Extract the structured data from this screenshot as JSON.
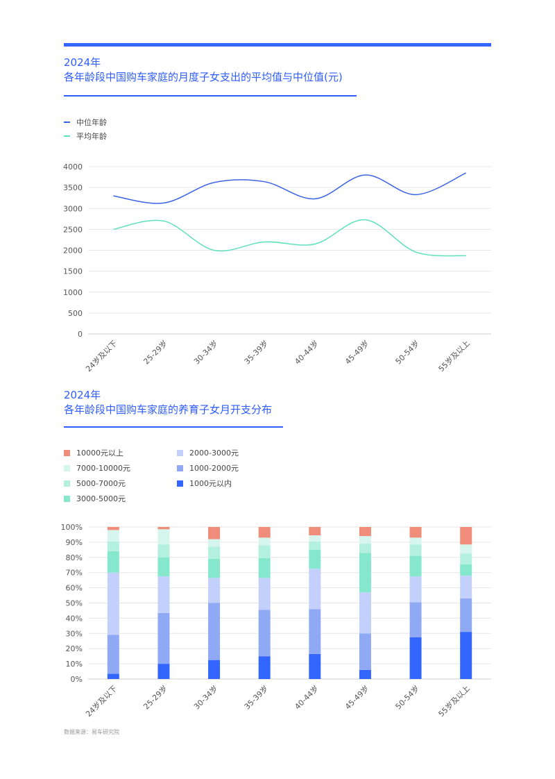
{
  "chart1": {
    "year": "2024年",
    "subtitle": "各年龄段中国购车家庭的月度子女支出的平均值与中位值(元)",
    "legend": [
      {
        "label": "中位年龄",
        "color": "#3b63e6"
      },
      {
        "label": "平均年龄",
        "color": "#5ee0bd"
      }
    ]
  },
  "chart2": {
    "year": "2024年",
    "subtitle": "各年龄段中国购车家庭的养育子女月开支分布",
    "legend": [
      {
        "label": "10000元以上",
        "color": "#f08c7a"
      },
      {
        "label": "7000-10000元",
        "color": "#d6f5ec"
      },
      {
        "label": "5000-7000元",
        "color": "#b3f0de"
      },
      {
        "label": "3000-5000元",
        "color": "#85e8cc"
      },
      {
        "label": "2000-3000元",
        "color": "#c2d0fb"
      },
      {
        "label": "1000-2000元",
        "color": "#8fa9f5"
      },
      {
        "label": "1000元以内",
        "color": "#3366ff"
      }
    ]
  },
  "source": "数据来源：易车研究院",
  "chart_data": [
    {
      "type": "line",
      "categories": [
        "24岁及以下",
        "25-29岁",
        "30-34岁",
        "35-39岁",
        "40-44岁",
        "45-49岁",
        "50-54岁",
        "55岁及以上"
      ],
      "yticks": [
        "0",
        "500",
        "1000",
        "1500",
        "2000",
        "2500",
        "3000",
        "3500",
        "4000"
      ],
      "ylim": [
        0,
        4000
      ],
      "grid": true,
      "legend_position": "top-left",
      "series": [
        {
          "name": "中位年龄",
          "color": "#3b63e6",
          "values": [
            3300,
            3130,
            3620,
            3640,
            3230,
            3800,
            3330,
            3850
          ]
        },
        {
          "name": "平均年龄",
          "color": "#5ee0bd",
          "values": [
            2500,
            2700,
            2000,
            2200,
            2150,
            2730,
            1960,
            1870
          ]
        }
      ]
    },
    {
      "type": "bar",
      "stacked": true,
      "categories": [
        "24岁及以下",
        "25-29岁",
        "30-34岁",
        "35-39岁",
        "40-44岁",
        "45-49岁",
        "50-54岁",
        "55岁及以上"
      ],
      "yticks": [
        "0%",
        "10%",
        "20%",
        "30%",
        "40%",
        "50%",
        "60%",
        "70%",
        "80%",
        "90%",
        "100%"
      ],
      "ylim": [
        0,
        100
      ],
      "grid": true,
      "legend_position": "top-left",
      "series": [
        {
          "name": "1000元以内",
          "color": "#3366ff",
          "values": [
            3.5,
            10,
            12.5,
            15,
            16.5,
            6,
            27.5,
            31
          ]
        },
        {
          "name": "1000-2000元",
          "color": "#8fa9f5",
          "values": [
            25.5,
            33.5,
            37.5,
            30.5,
            29.5,
            24,
            23,
            22
          ]
        },
        {
          "name": "2000-3000元",
          "color": "#c2d0fb",
          "values": [
            41,
            24,
            16.5,
            21,
            26.5,
            27,
            17,
            15
          ]
        },
        {
          "name": "3000-5000元",
          "color": "#85e8cc",
          "values": [
            14,
            12.5,
            12.5,
            13,
            12.5,
            26,
            13.5,
            7.5
          ]
        },
        {
          "name": "5000-7000元",
          "color": "#b3f0de",
          "values": [
            6.5,
            8.5,
            8,
            8.5,
            5.5,
            6,
            7.5,
            7
          ]
        },
        {
          "name": "7000-10000元",
          "color": "#d6f5ec",
          "values": [
            7.5,
            10,
            5,
            5,
            4,
            5,
            4.5,
            6
          ]
        },
        {
          "name": "10000元以上",
          "color": "#f08c7a",
          "values": [
            2,
            1.5,
            8,
            7,
            5.5,
            6,
            7,
            11.5
          ]
        }
      ]
    }
  ]
}
